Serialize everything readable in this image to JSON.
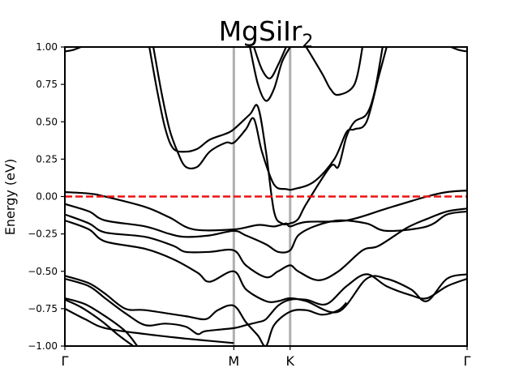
{
  "chart_data": {
    "type": "line",
    "title": "MgSiIr",
    "title_subscript": "2",
    "xlabel": "",
    "ylabel": "Energy (eV)",
    "ylim": [
      -1.0,
      1.0
    ],
    "xlim": [
      0,
      1
    ],
    "yticks": [
      "1.00",
      "0.75",
      "0.50",
      "0.25",
      "0.00",
      "−0.25",
      "−0.50",
      "−0.75",
      "−1.00"
    ],
    "ytick_values": [
      1.0,
      0.75,
      0.5,
      0.25,
      0.0,
      -0.25,
      -0.5,
      -0.75,
      -1.0
    ],
    "kpoints": [
      {
        "label": "Γ",
        "x": 0.0
      },
      {
        "label": "M",
        "x": 0.42
      },
      {
        "label": "K",
        "x": 0.56
      },
      {
        "label": "Γ",
        "x": 1.0
      }
    ],
    "high_symmetry_lines_color": "#b0b0b0",
    "fermi_level": {
      "y": 0.0,
      "color": "#ee1111",
      "style": "dashed"
    },
    "band_color": "#000000",
    "series": [
      {
        "x": [
          0.0,
          0.05,
          0.1,
          0.2,
          0.3,
          0.42
        ],
        "y": [
          -0.75,
          -0.82,
          -0.88,
          -0.92,
          -0.95,
          -0.98
        ]
      },
      {
        "x": [
          0.0,
          0.05,
          0.1,
          0.15,
          0.18
        ],
        "y": [
          -0.68,
          -0.72,
          -0.8,
          -0.9,
          -1.0
        ]
      },
      {
        "x": [
          0.0,
          0.04,
          0.09,
          0.13,
          0.17
        ],
        "y": [
          -0.69,
          -0.74,
          -0.83,
          -0.92,
          -1.0
        ]
      },
      {
        "x": [
          0.0,
          0.06,
          0.1,
          0.15,
          0.2,
          0.3,
          0.35,
          0.38,
          0.42,
          0.45,
          0.48,
          0.5,
          0.52,
          0.56,
          0.6,
          0.64,
          0.68,
          0.7
        ],
        "y": [
          -0.53,
          -0.58,
          -0.65,
          -0.75,
          -0.76,
          -0.8,
          -0.82,
          -0.76,
          -0.73,
          -0.84,
          -0.93,
          -1.0,
          -0.86,
          -0.77,
          -0.76,
          -0.79,
          -0.76,
          -0.71
        ]
      },
      {
        "x": [
          0.0,
          0.06,
          0.1,
          0.15,
          0.2,
          0.25,
          0.3,
          0.33,
          0.35,
          0.42,
          0.45,
          0.48,
          0.5,
          0.53,
          0.56,
          0.6,
          0.65,
          0.7,
          0.75,
          0.8,
          0.86,
          0.9,
          0.95,
          1.0
        ],
        "y": [
          -0.55,
          -0.6,
          -0.68,
          -0.78,
          -0.86,
          -0.85,
          -0.87,
          -0.92,
          -0.9,
          -0.88,
          -0.86,
          -0.84,
          -0.82,
          -0.73,
          -0.69,
          -0.69,
          -0.72,
          -0.6,
          -0.52,
          -0.6,
          -0.66,
          -0.68,
          -0.6,
          -0.55
        ]
      },
      {
        "x": [
          0.0,
          0.06,
          0.1,
          0.2,
          0.27,
          0.33,
          0.36,
          0.42,
          0.45,
          0.5,
          0.53,
          0.56,
          0.6,
          0.68,
          0.75,
          0.8,
          0.86,
          0.9,
          0.95,
          1.0
        ],
        "y": [
          -0.16,
          -0.22,
          -0.3,
          -0.35,
          -0.42,
          -0.51,
          -0.57,
          -0.5,
          -0.62,
          -0.7,
          -0.7,
          -0.68,
          -0.7,
          -0.77,
          -0.55,
          -0.55,
          -0.62,
          -0.7,
          -0.55,
          -0.52
        ]
      },
      {
        "x": [
          0.0,
          0.06,
          0.1,
          0.2,
          0.27,
          0.3,
          0.36,
          0.42,
          0.45,
          0.5,
          0.53,
          0.56,
          0.58,
          0.63,
          0.68,
          0.74,
          0.78,
          0.85,
          0.9,
          0.95,
          1.0
        ],
        "y": [
          -0.12,
          -0.18,
          -0.24,
          -0.27,
          -0.33,
          -0.37,
          -0.37,
          -0.36,
          -0.46,
          -0.54,
          -0.5,
          -0.46,
          -0.5,
          -0.56,
          -0.5,
          -0.36,
          -0.33,
          -0.21,
          -0.15,
          -0.1,
          -0.08
        ]
      },
      {
        "x": [
          0.0,
          0.06,
          0.1,
          0.2,
          0.26,
          0.3,
          0.36,
          0.42,
          0.45,
          0.5,
          0.53,
          0.56,
          0.58,
          0.62,
          0.68,
          0.75,
          0.8,
          0.9,
          0.95,
          1.0
        ],
        "y": [
          -0.05,
          -0.1,
          -0.16,
          -0.2,
          -0.25,
          -0.27,
          -0.26,
          -0.23,
          -0.26,
          -0.32,
          -0.37,
          -0.36,
          -0.26,
          -0.2,
          -0.16,
          -0.18,
          -0.23,
          -0.2,
          -0.12,
          -0.1
        ]
      },
      {
        "x": [
          0.0,
          0.06,
          0.1,
          0.2,
          0.26,
          0.32,
          0.42,
          0.48,
          0.52,
          0.55,
          0.56,
          0.6,
          0.7,
          0.8,
          0.9,
          0.95,
          1.0
        ],
        "y": [
          0.03,
          0.02,
          0.0,
          -0.07,
          -0.14,
          -0.22,
          -0.22,
          -0.19,
          -0.2,
          -0.18,
          -0.2,
          -0.17,
          -0.16,
          -0.08,
          0.0,
          0.03,
          0.04
        ]
      },
      {
        "x": [
          0.22,
          0.24,
          0.26,
          0.28,
          0.3,
          0.33,
          0.36,
          0.4,
          0.42,
          0.45,
          0.47,
          0.49,
          0.52,
          0.55,
          0.57,
          0.62,
          0.67,
          0.7,
          0.72,
          0.75,
          0.78,
          0.8
        ],
        "y": [
          1.0,
          0.7,
          0.45,
          0.3,
          0.2,
          0.2,
          0.3,
          0.36,
          0.36,
          0.45,
          0.52,
          0.3,
          0.08,
          0.05,
          0.05,
          0.1,
          0.25,
          0.43,
          0.45,
          0.5,
          0.8,
          1.0
        ]
      },
      {
        "x": [
          0.21,
          0.23,
          0.25,
          0.27,
          0.3,
          0.33,
          0.36,
          0.4,
          0.42,
          0.46,
          0.48,
          0.5,
          0.52,
          0.54,
          0.56,
          0.58,
          0.6,
          0.66,
          0.68,
          0.7,
          0.72,
          0.75,
          0.77,
          0.79
        ],
        "y": [
          1.0,
          0.7,
          0.45,
          0.32,
          0.3,
          0.32,
          0.38,
          0.42,
          0.45,
          0.55,
          0.6,
          0.3,
          -0.1,
          -0.18,
          -0.18,
          -0.15,
          -0.05,
          0.2,
          0.2,
          0.4,
          0.5,
          0.55,
          0.7,
          1.0
        ]
      },
      {
        "x": [
          0.46,
          0.48,
          0.5,
          0.52,
          0.54,
          0.56
        ],
        "y": [
          1.0,
          0.75,
          0.64,
          0.72,
          0.9,
          1.0
        ]
      },
      {
        "x": [
          0.47,
          0.49,
          0.51,
          0.53,
          0.55
        ],
        "y": [
          1.0,
          0.85,
          0.79,
          0.88,
          1.0
        ]
      },
      {
        "x": [
          0.6,
          0.64,
          0.66,
          0.68,
          0.72,
          0.74
        ],
        "y": [
          1.0,
          0.82,
          0.72,
          0.68,
          0.75,
          1.0
        ]
      },
      {
        "x": [
          0.0,
          0.02,
          0.04
        ],
        "y": [
          0.97,
          0.98,
          1.0
        ]
      },
      {
        "x": [
          0.96,
          0.98,
          1.0
        ],
        "y": [
          1.0,
          0.98,
          0.97
        ]
      }
    ]
  }
}
